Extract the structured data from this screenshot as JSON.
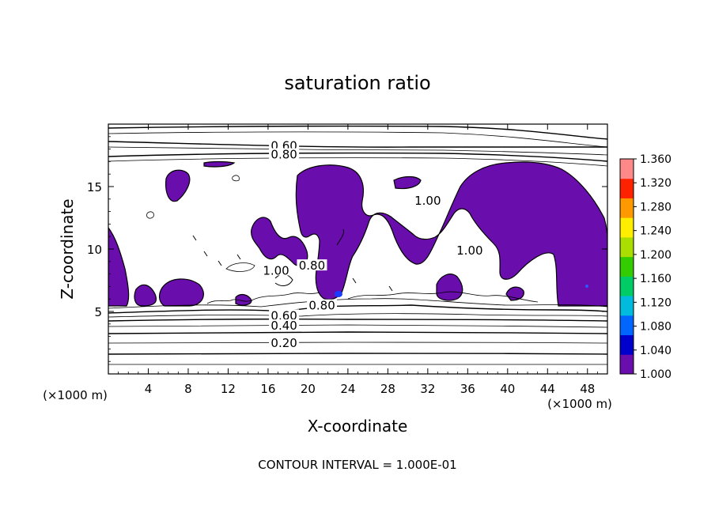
{
  "chart_data": {
    "type": "contour",
    "title": "saturation ratio",
    "xlabel": "X-coordinate",
    "ylabel": "Z-coordinate",
    "x_unit": "(×1000 m)",
    "xlim": [
      0,
      50
    ],
    "ylim": [
      0,
      20
    ],
    "x_ticks": [
      4,
      8,
      12,
      16,
      20,
      24,
      28,
      32,
      36,
      40,
      44,
      48
    ],
    "y_ticks": [
      5,
      10,
      15
    ],
    "x_tick_labels": [
      "4",
      "8",
      "12",
      "16",
      "20",
      "24",
      "28",
      "32",
      "36",
      "40",
      "44",
      "48"
    ],
    "y_tick_labels": [
      "5",
      "10",
      "15"
    ],
    "footer": "CONTOUR INTERVAL = 1.000E-01",
    "contour_labels": [
      {
        "text": "0.60",
        "x": 17.6,
        "z": 18.2
      },
      {
        "text": "0.80",
        "x": 17.6,
        "z": 17.5
      },
      {
        "text": "1.00",
        "x": 32.0,
        "z": 13.8
      },
      {
        "text": "1.00",
        "x": 36.2,
        "z": 9.8
      },
      {
        "text": "1.00",
        "x": 16.8,
        "z": 8.2
      },
      {
        "text": "0.80",
        "x": 20.4,
        "z": 8.6
      },
      {
        "text": "0.80",
        "x": 21.4,
        "z": 5.4
      },
      {
        "text": "0.60",
        "x": 17.6,
        "z": 4.6
      },
      {
        "text": "0.40",
        "x": 17.6,
        "z": 3.8
      },
      {
        "text": "0.20",
        "x": 17.6,
        "z": 2.4
      }
    ],
    "colorbar": {
      "min": 1.0,
      "max": 1.36,
      "labels": [
        "1.360",
        "1.320",
        "1.280",
        "1.240",
        "1.200",
        "1.160",
        "1.120",
        "1.080",
        "1.040",
        "1.000"
      ],
      "colors": [
        "#6a0dad",
        "#0000cc",
        "#0066ff",
        "#00bbdd",
        "#00cc66",
        "#33cc00",
        "#aadd00",
        "#ffee00",
        "#ff9900",
        "#ff2200",
        "#ff8888"
      ]
    }
  }
}
